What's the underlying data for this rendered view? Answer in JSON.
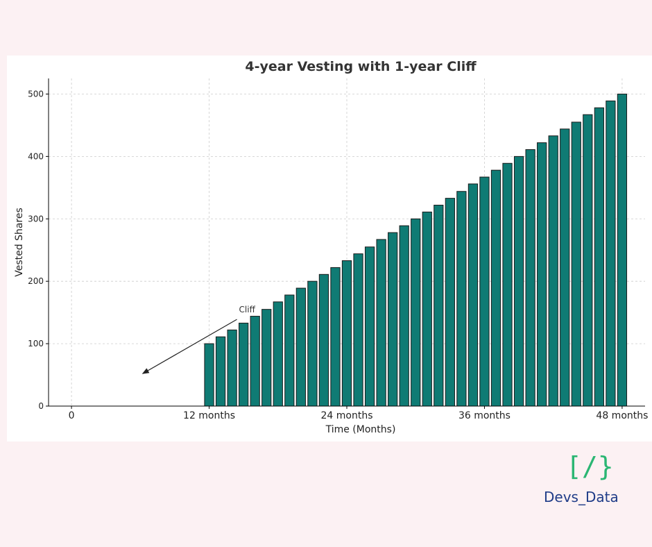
{
  "page": {
    "background": "#fcf1f3"
  },
  "logo": {
    "mark": "[/}",
    "text": "Devs_Data",
    "mark_color": "#2bb673",
    "text_color": "#1f3c88"
  },
  "chart_data": {
    "type": "bar",
    "title": "4-year Vesting with 1-year Cliff",
    "xlabel": "Time (Months)",
    "ylabel": "Vested Shares",
    "xlim": [
      -2,
      50
    ],
    "ylim": [
      0,
      525
    ],
    "xticks": [
      {
        "value": 0,
        "label": "0"
      },
      {
        "value": 12,
        "label": "12 months"
      },
      {
        "value": 24,
        "label": "24 months"
      },
      {
        "value": 36,
        "label": "36 months"
      },
      {
        "value": 48,
        "label": "48 months"
      }
    ],
    "yticks": [
      0,
      100,
      200,
      300,
      400,
      500
    ],
    "grid": true,
    "bar_color": "#0f7b74",
    "bar_edge_color": "#1a1a1a",
    "x": [
      1,
      2,
      3,
      4,
      5,
      6,
      7,
      8,
      9,
      10,
      11,
      12,
      13,
      14,
      15,
      16,
      17,
      18,
      19,
      20,
      21,
      22,
      23,
      24,
      25,
      26,
      27,
      28,
      29,
      30,
      31,
      32,
      33,
      34,
      35,
      36,
      37,
      38,
      39,
      40,
      41,
      42,
      43,
      44,
      45,
      46,
      47,
      48
    ],
    "values": [
      0,
      0,
      0,
      0,
      0,
      0,
      0,
      0,
      0,
      0,
      0,
      100,
      111,
      122,
      133,
      144,
      155,
      167,
      178,
      189,
      200,
      211,
      222,
      233,
      244,
      255,
      267,
      278,
      289,
      300,
      311,
      322,
      333,
      344,
      356,
      367,
      378,
      389,
      400,
      411,
      422,
      433,
      444,
      455,
      467,
      478,
      489,
      500
    ],
    "annotations": [
      {
        "text": "Cliff",
        "text_x": 14.6,
        "text_y": 150,
        "arrow_to_x": 6.2,
        "arrow_to_y": 52
      }
    ]
  }
}
